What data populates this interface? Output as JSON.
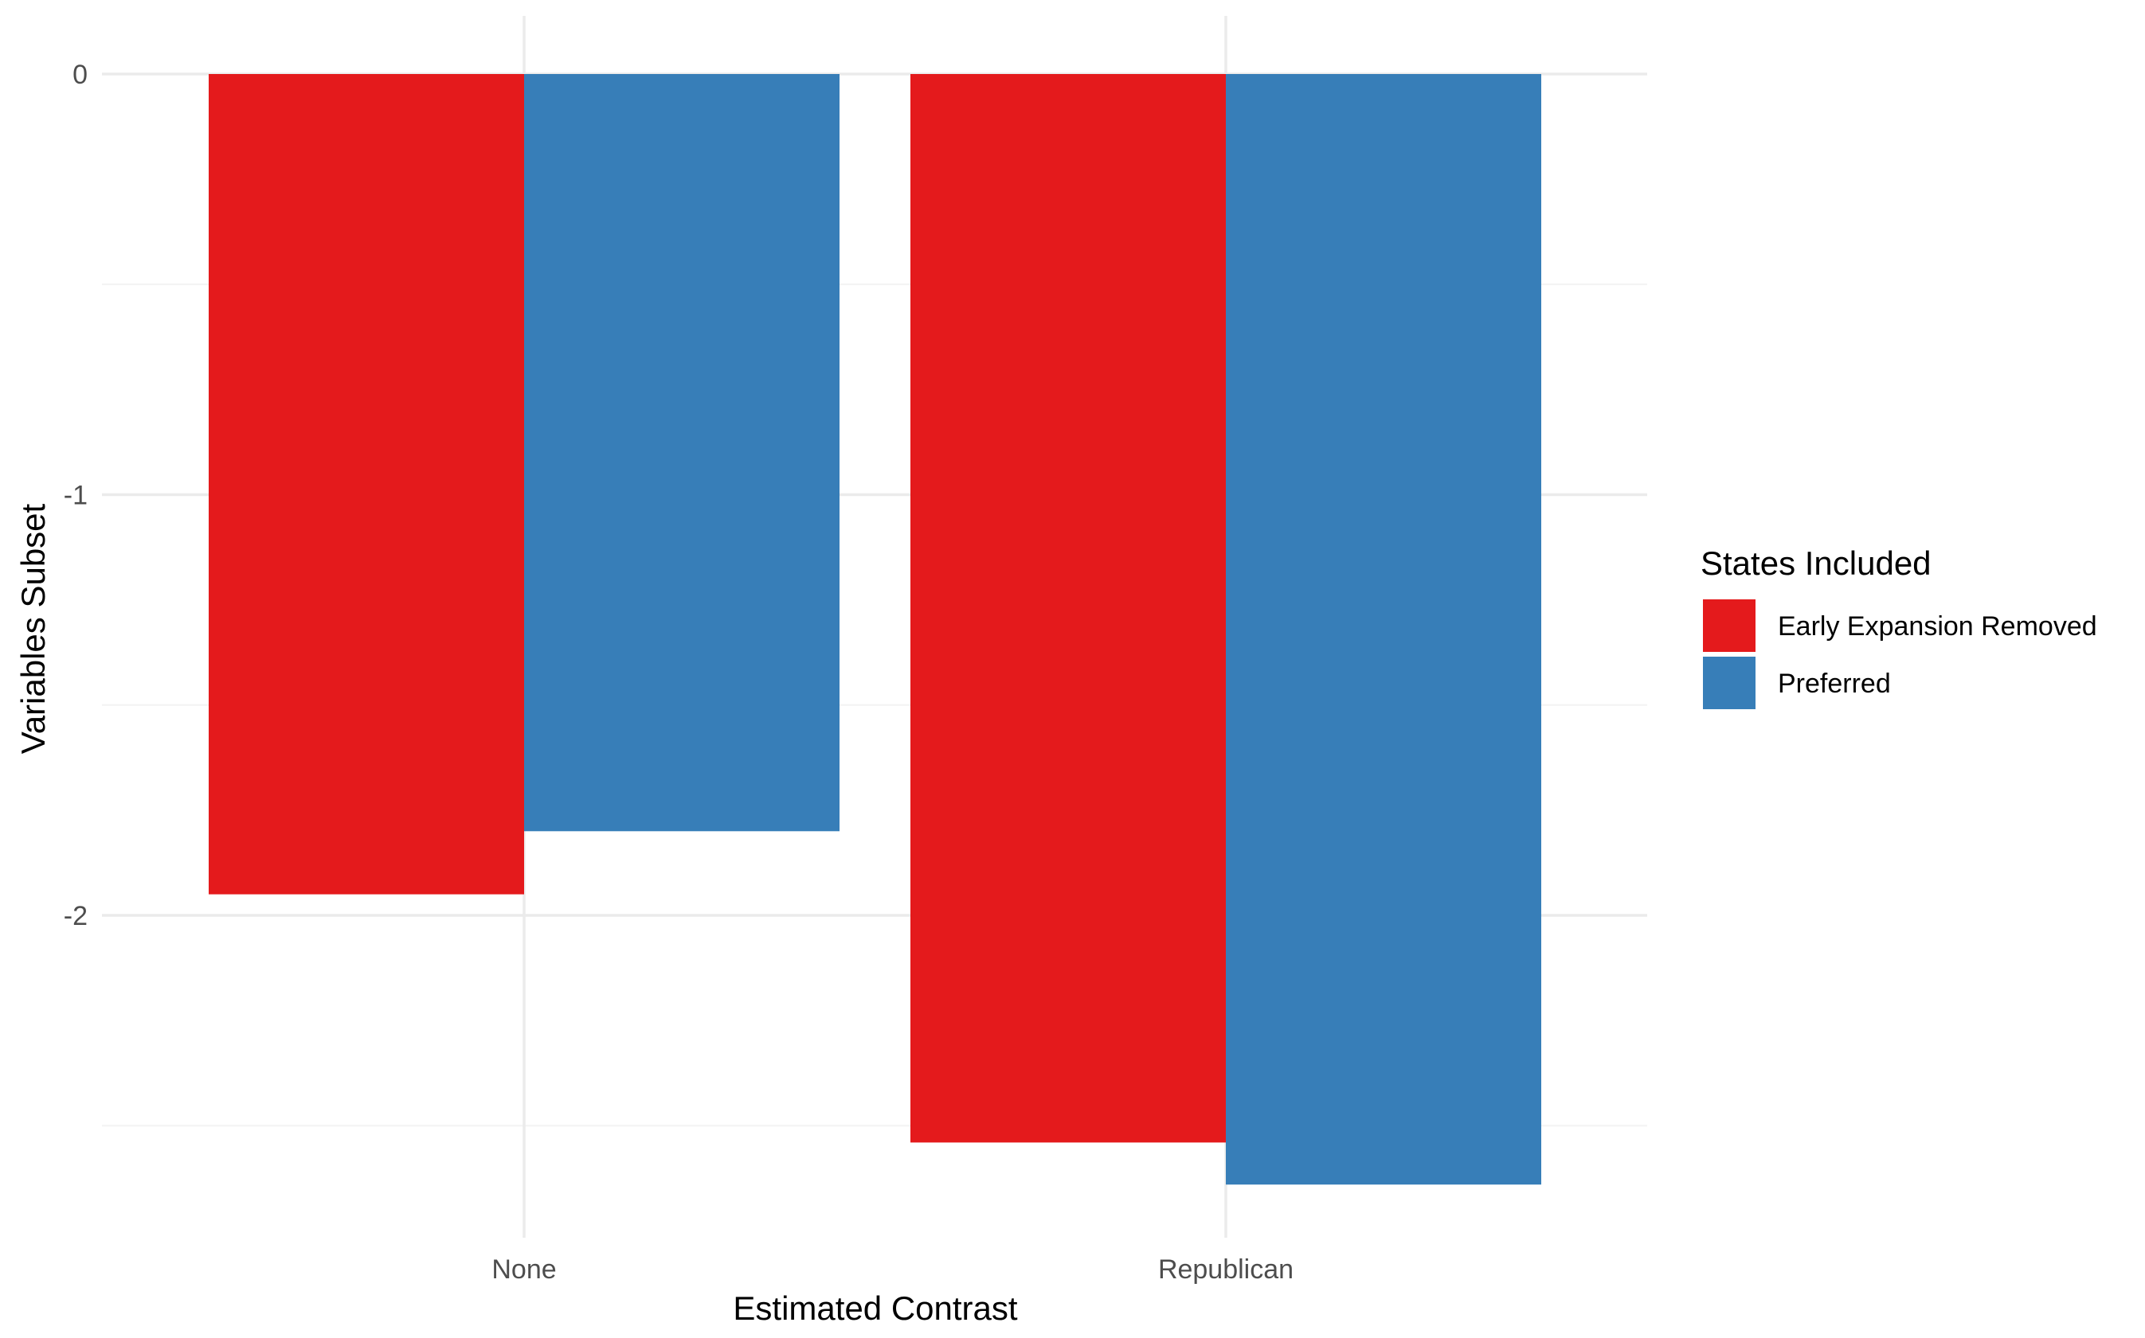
{
  "chart_data": {
    "type": "bar",
    "categories": [
      "None",
      "Republican"
    ],
    "series": [
      {
        "name": "Early Expansion Removed",
        "values": [
          -1.95,
          -2.54
        ],
        "color": "#e41a1c"
      },
      {
        "name": "Preferred",
        "values": [
          -1.8,
          -2.64
        ],
        "color": "#377eb8"
      }
    ],
    "xlabel": "Estimated Contrast",
    "ylabel": "Variables Subset",
    "ylim": [
      -2.78,
      0.13
    ],
    "yticks": [
      0,
      -1,
      -2
    ],
    "ytick_labels": [
      "0",
      "-1",
      "-2"
    ],
    "minor_yticks": [
      -0.5,
      -1.5,
      -2.5
    ],
    "legend": {
      "title": "States Included",
      "position": "right"
    },
    "grid": true
  }
}
